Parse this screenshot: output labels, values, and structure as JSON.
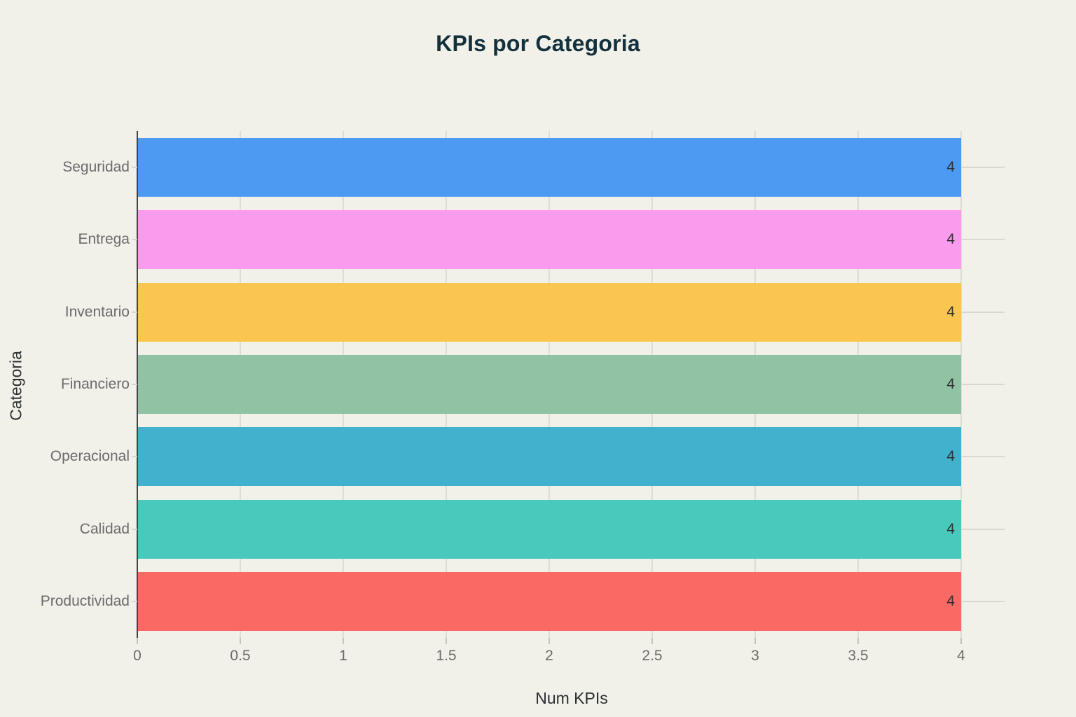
{
  "chart_data": {
    "type": "bar",
    "orientation": "horizontal",
    "title": "KPIs por Categoria",
    "xlabel": "Num KPIs",
    "ylabel": "Categoria",
    "categories": [
      "Seguridad",
      "Entrega",
      "Inventario",
      "Financiero",
      "Operacional",
      "Calidad",
      "Productividad"
    ],
    "values": [
      4,
      4,
      4,
      4,
      4,
      4,
      4
    ],
    "value_labels": [
      "4",
      "4",
      "4",
      "4",
      "4",
      "4",
      "4"
    ],
    "bar_colors": [
      "#4D9AF3",
      "#FA9BEE",
      "#FBC64F",
      "#8FC3A4",
      "#41B2CE",
      "#49C9BC",
      "#FA6963"
    ],
    "xlim": [
      0,
      4.2
    ],
    "xticks": [
      0,
      0.5,
      1,
      1.5,
      2,
      2.5,
      3,
      3.5,
      4
    ],
    "xtick_labels": [
      "0",
      "0.5",
      "1",
      "1.5",
      "2",
      "2.5",
      "3",
      "3.5",
      "4"
    ],
    "grid": true,
    "legend": false
  },
  "colors": {
    "background": "#F1F0E9",
    "title_text": "#13313C",
    "axis_title_text": "#2B2F31",
    "tick_label_text": "#6B6B6B",
    "value_label_text": "#2E2E2E",
    "gridline": "#DEDCD4",
    "axis_line": "#424242",
    "minor_tick": "#C5C3BB",
    "right_tick": "#D9D7CF"
  }
}
